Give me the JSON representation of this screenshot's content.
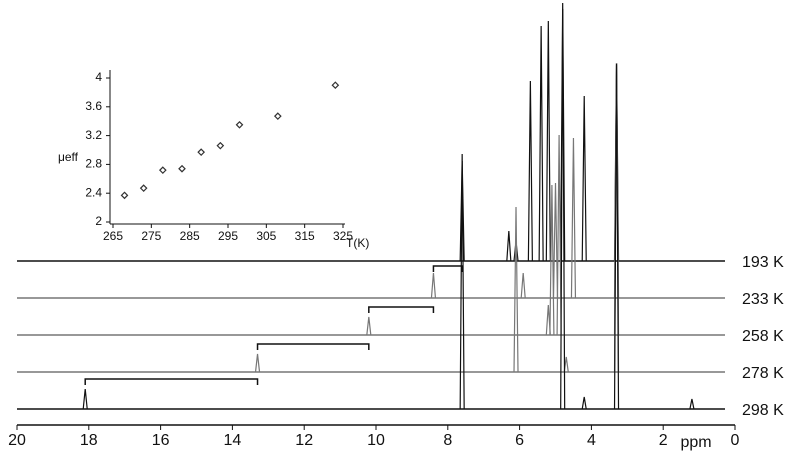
{
  "chart_data": [
    {
      "type": "spectra",
      "xlabel": "ppm",
      "xlim": [
        20,
        0
      ],
      "xticks": [
        20,
        18,
        16,
        14,
        12,
        10,
        8,
        6,
        4,
        2,
        0
      ],
      "series": [
        {
          "name": "193 K",
          "color": "#111111",
          "x": [
            7.6,
            6.3,
            6.1,
            5.7,
            5.4,
            5.2,
            4.8,
            4.2,
            3.3
          ],
          "values": [
            100,
            30,
            20,
            180,
            235,
            240,
            258,
            165,
            198
          ]
        },
        {
          "name": "233 K",
          "color": "#777777",
          "x": [
            8.4,
            5.9,
            5.0,
            4.5,
            3.3
          ],
          "values": [
            25,
            25,
            115,
            160,
            235
          ]
        },
        {
          "name": "258 K",
          "color": "#777777",
          "x": [
            10.2,
            5.2,
            5.1,
            4.9,
            3.3
          ],
          "values": [
            18,
            30,
            150,
            200,
            270
          ]
        },
        {
          "name": "278 K",
          "color": "#777777",
          "x": [
            13.3,
            6.1,
            4.7,
            3.3
          ],
          "values": [
            18,
            165,
            15,
            300
          ]
        },
        {
          "name": "298 K",
          "color": "#111111",
          "x": [
            18.1,
            7.6,
            4.8,
            4.2,
            3.3,
            1.2
          ],
          "values": [
            20,
            255,
            400,
            12,
            345,
            10
          ]
        }
      ]
    },
    {
      "type": "scatter",
      "xlabel": "T(K)",
      "ylabel": "μeff",
      "xlim": [
        265,
        325
      ],
      "xticks": [
        265,
        275,
        285,
        295,
        305,
        315,
        325
      ],
      "ylim": [
        2,
        4
      ],
      "yticks": [
        2,
        2.4,
        2.8,
        3.2,
        3.6,
        4
      ],
      "color": "#333333",
      "x": [
        268,
        273,
        278,
        283,
        288,
        293,
        298,
        308,
        323
      ],
      "values": [
        2.37,
        2.47,
        2.72,
        2.74,
        2.97,
        3.06,
        3.35,
        3.47,
        3.9
      ]
    }
  ]
}
